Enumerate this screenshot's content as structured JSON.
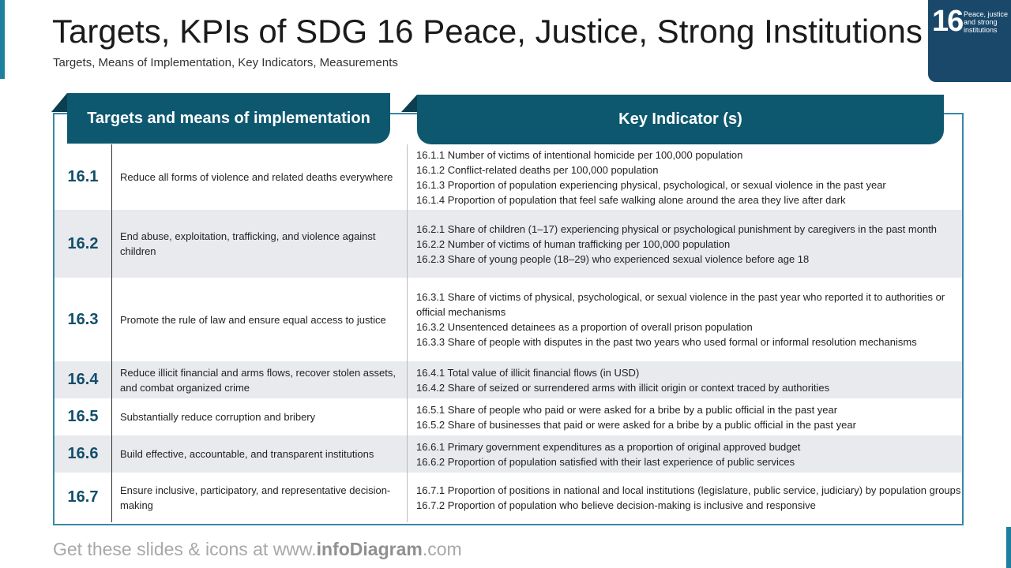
{
  "header": {
    "title": "Targets, KPIs of SDG 16 Peace, Justice, Strong Institutions",
    "subtitle": "Targets, Means of Implementation, Key Indicators, Measurements"
  },
  "badge": {
    "number": "16",
    "text": "Peace, justice and strong institutions"
  },
  "table": {
    "headers": [
      "Targets and means of implementation",
      "Key Indicator (s)"
    ],
    "rows": [
      {
        "id": "16.1",
        "target": "Reduce all forms of violence and related deaths everywhere",
        "indicators": [
          "16.1.1 Number of victims of intentional homicide per 100,000 population",
          "16.1.2 Conflict-related deaths per 100,000 population",
          "16.1.3 Proportion of population experiencing physical, psychological, or sexual violence in the past year",
          "16.1.4 Proportion of population that feel safe walking alone around the area they live after dark"
        ]
      },
      {
        "id": "16.2",
        "target": "End abuse, exploitation, trafficking, and violence against children",
        "indicators": [
          "16.2.1 Share of children (1–17) experiencing physical or psychological punishment by caregivers in the past month",
          "16.2.2 Number of victims of human trafficking per 100,000 population",
          "16.2.3 Share of young people (18–29) who experienced sexual violence before age 18"
        ]
      },
      {
        "id": "16.3",
        "target": "Promote the rule of law and ensure equal access to justice",
        "indicators": [
          "16.3.1 Share of victims of physical, psychological, or sexual violence in the past year who reported it to authorities or official mechanisms",
          "16.3.2 Unsentenced detainees as a proportion of overall prison population",
          "16.3.3 Share of people with disputes in the past two years who used formal or informal resolution mechanisms"
        ]
      },
      {
        "id": "16.4",
        "target": "Reduce illicit financial and arms flows, recover stolen assets, and combat organized crime",
        "indicators": [
          "16.4.1 Total value of illicit financial flows (in USD)",
          "16.4.2 Share of seized or surrendered arms with illicit origin or context traced by authorities"
        ]
      },
      {
        "id": "16.5",
        "target": "Substantially reduce corruption and bribery",
        "indicators": [
          "16.5.1 Share of people who paid or were asked for a bribe by a public official in the past year",
          "16.5.2 Share of businesses that paid or were asked for a bribe by a public official in the past year"
        ]
      },
      {
        "id": "16.6",
        "target": "Build effective, accountable, and transparent institutions",
        "indicators": [
          "16.6.1 Primary government expenditures as a proportion of original approved budget",
          "16.6.2 Proportion of population satisfied with their last experience of public services"
        ]
      },
      {
        "id": "16.7",
        "target": "Ensure inclusive, participatory, and representative decision-making",
        "indicators": [
          "16.7.1 Proportion of positions in national and local institutions (legislature, public service, judiciary) by population groups",
          "16.7.2 Proportion of population who believe decision-making is inclusive and responsive"
        ]
      }
    ]
  },
  "footer": {
    "prefix": "Get these slides & icons at www.",
    "brand": "infoDiagram",
    "suffix": ".com"
  }
}
